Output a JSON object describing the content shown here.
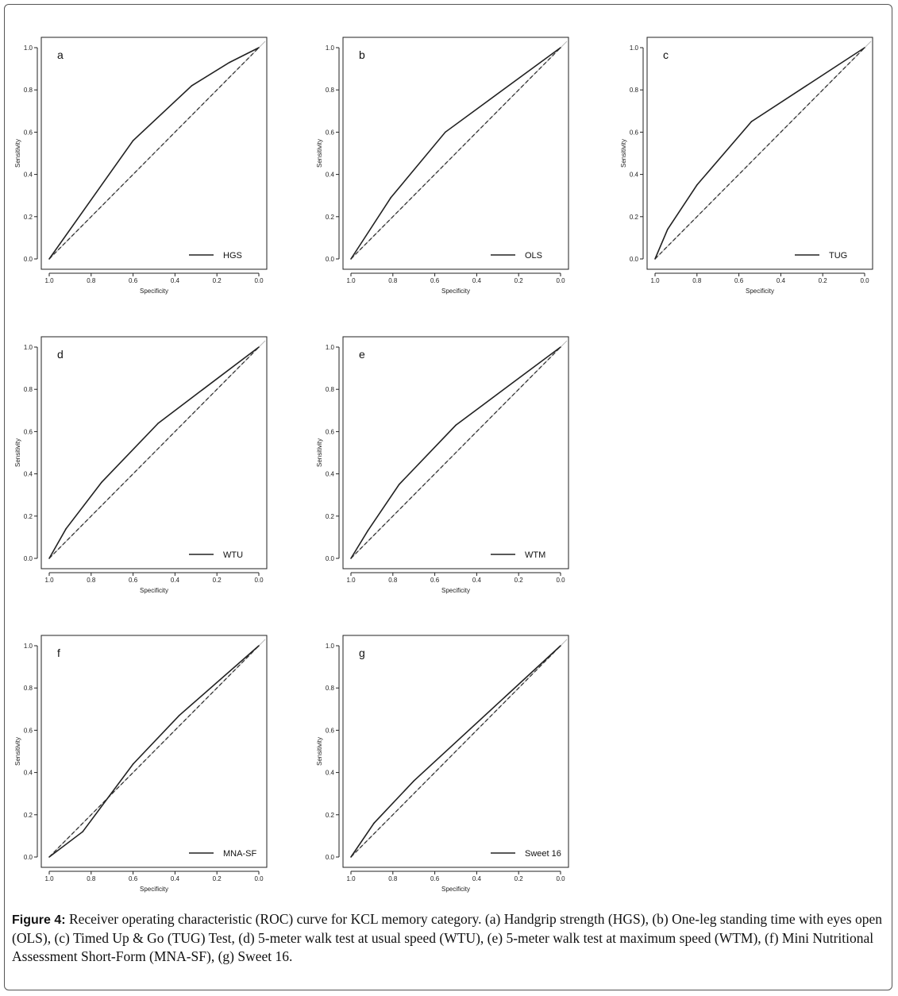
{
  "figure": {
    "caption_label": "Figure 4:",
    "caption_text": " Receiver operating characteristic (ROC) curve for KCL memory category. (a) Handgrip strength (HGS), (b) One-leg standing time with eyes open (OLS), (c) Timed Up & Go (TUG) Test, (d) 5-meter walk test at usual speed (WTU), (e) 5-meter walk test at maximum speed (WTM), (f) Mini Nutritional Assessment Short-Form (MNA-SF), (g) Sweet 16."
  },
  "chart_data": [
    {
      "type": "line",
      "panel": "a",
      "legend": "HGS",
      "xlabel": "Specificity",
      "ylabel": "Sensitivity",
      "xlim": [
        1.0,
        0.0
      ],
      "ylim": [
        0.0,
        1.0
      ],
      "xticks": [
        "1.0",
        "0.8",
        "0.6",
        "0.4",
        "0.2",
        "0.0"
      ],
      "yticks": [
        "0.0",
        "0.2",
        "0.4",
        "0.6",
        "0.8",
        "1.0"
      ],
      "x": [
        1.0,
        0.6,
        0.32,
        0.14,
        0.0
      ],
      "y": [
        0.0,
        0.56,
        0.82,
        0.93,
        1.0
      ],
      "reference_line": true,
      "legend_position": "bottom-right",
      "grid": false
    },
    {
      "type": "line",
      "panel": "b",
      "legend": "OLS",
      "xlabel": "Specificity",
      "ylabel": "Sensitivity",
      "xlim": [
        1.0,
        0.0
      ],
      "ylim": [
        0.0,
        1.0
      ],
      "xticks": [
        "1.0",
        "0.8",
        "0.6",
        "0.4",
        "0.2",
        "0.0"
      ],
      "yticks": [
        "0.0",
        "0.2",
        "0.4",
        "0.6",
        "0.8",
        "1.0"
      ],
      "x": [
        1.0,
        0.81,
        0.55,
        0.0
      ],
      "y": [
        0.0,
        0.29,
        0.6,
        1.0
      ],
      "reference_line": true,
      "legend_position": "bottom-right",
      "grid": false
    },
    {
      "type": "line",
      "panel": "c",
      "legend": "TUG",
      "xlabel": "Specificity",
      "ylabel": "Sensitivity",
      "xlim": [
        1.0,
        0.0
      ],
      "ylim": [
        0.0,
        1.0
      ],
      "xticks": [
        "1.0",
        "0.8",
        "0.6",
        "0.4",
        "0.2",
        "0.0"
      ],
      "yticks": [
        "0.0",
        "0.2",
        "0.4",
        "0.6",
        "0.8",
        "1.0"
      ],
      "x": [
        1.0,
        0.94,
        0.8,
        0.54,
        0.0
      ],
      "y": [
        0.0,
        0.14,
        0.35,
        0.65,
        1.0
      ],
      "reference_line": true,
      "legend_position": "bottom-right",
      "grid": false
    },
    {
      "type": "line",
      "panel": "d",
      "legend": "WTU",
      "xlabel": "Specificity",
      "ylabel": "Sensitivity",
      "xlim": [
        1.0,
        0.0
      ],
      "ylim": [
        0.0,
        1.0
      ],
      "xticks": [
        "1.0",
        "0.8",
        "0.6",
        "0.4",
        "0.2",
        "0.0"
      ],
      "yticks": [
        "0.0",
        "0.2",
        "0.4",
        "0.6",
        "0.8",
        "1.0"
      ],
      "x": [
        1.0,
        0.92,
        0.75,
        0.48,
        0.0
      ],
      "y": [
        0.0,
        0.14,
        0.36,
        0.64,
        1.0
      ],
      "reference_line": true,
      "legend_position": "bottom-right",
      "grid": false
    },
    {
      "type": "line",
      "panel": "e",
      "legend": "WTM",
      "xlabel": "Specificity",
      "ylabel": "Sensitivity",
      "xlim": [
        1.0,
        0.0
      ],
      "ylim": [
        0.0,
        1.0
      ],
      "xticks": [
        "1.0",
        "0.8",
        "0.6",
        "0.4",
        "0.2",
        "0.0"
      ],
      "yticks": [
        "0.0",
        "0.2",
        "0.4",
        "0.6",
        "0.8",
        "1.0"
      ],
      "x": [
        1.0,
        0.92,
        0.77,
        0.5,
        0.0
      ],
      "y": [
        0.0,
        0.13,
        0.35,
        0.63,
        1.0
      ],
      "reference_line": true,
      "legend_position": "bottom-right",
      "grid": false
    },
    {
      "type": "line",
      "panel": "f",
      "legend": "MNA-SF",
      "xlabel": "Specificity",
      "ylabel": "Sensitivity",
      "xlim": [
        1.0,
        0.0
      ],
      "ylim": [
        0.0,
        1.0
      ],
      "xticks": [
        "1.0",
        "0.8",
        "0.6",
        "0.4",
        "0.2",
        "0.0"
      ],
      "yticks": [
        "0.0",
        "0.2",
        "0.4",
        "0.6",
        "0.8",
        "1.0"
      ],
      "x": [
        1.0,
        0.84,
        0.6,
        0.38,
        0.0
      ],
      "y": [
        0.0,
        0.12,
        0.44,
        0.67,
        1.0
      ],
      "reference_line": true,
      "legend_position": "bottom-right",
      "grid": false
    },
    {
      "type": "line",
      "panel": "g",
      "legend": "Sweet 16",
      "xlabel": "Specificity",
      "ylabel": "Sensitivity",
      "xlim": [
        1.0,
        0.0
      ],
      "ylim": [
        0.0,
        1.0
      ],
      "xticks": [
        "1.0",
        "0.8",
        "0.6",
        "0.4",
        "0.2",
        "0.0"
      ],
      "yticks": [
        "0.0",
        "0.2",
        "0.4",
        "0.6",
        "0.8",
        "1.0"
      ],
      "x": [
        1.0,
        0.89,
        0.7,
        0.0
      ],
      "y": [
        0.0,
        0.16,
        0.36,
        1.0
      ],
      "reference_line": true,
      "legend_position": "bottom-right",
      "grid": false
    }
  ]
}
